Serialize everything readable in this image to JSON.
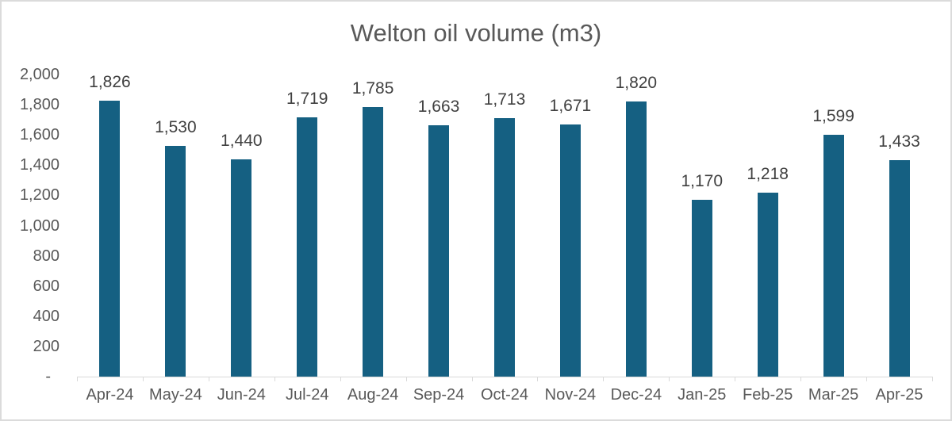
{
  "chart_data": {
    "type": "bar",
    "title": "Welton oil volume (m3)",
    "categories": [
      "Apr-24",
      "May-24",
      "Jun-24",
      "Jul-24",
      "Aug-24",
      "Sep-24",
      "Oct-24",
      "Nov-24",
      "Dec-24",
      "Jan-25",
      "Feb-25",
      "Mar-25",
      "Apr-25"
    ],
    "values": [
      1826,
      1530,
      1440,
      1719,
      1785,
      1663,
      1713,
      1671,
      1820,
      1170,
      1218,
      1599,
      1433
    ],
    "data_labels": [
      "1,826",
      "1,530",
      "1,440",
      "1,719",
      "1,785",
      "1,663",
      "1,713",
      "1,671",
      "1,820",
      "1,170",
      "1,218",
      "1,599",
      "1,433"
    ],
    "xlabel": "",
    "ylabel": "",
    "ylim": [
      0,
      2000
    ],
    "y_tick_step": 200,
    "y_ticks": [
      {
        "value": 2000,
        "label": "2,000"
      },
      {
        "value": 1800,
        "label": "1,800"
      },
      {
        "value": 1600,
        "label": "1,600"
      },
      {
        "value": 1400,
        "label": "1,400"
      },
      {
        "value": 1200,
        "label": "1,200"
      },
      {
        "value": 1000,
        "label": "1,000"
      },
      {
        "value": 800,
        "label": "800"
      },
      {
        "value": 600,
        "label": "600"
      },
      {
        "value": 400,
        "label": "400"
      },
      {
        "value": 200,
        "label": "200"
      },
      {
        "value": 0,
        "label": "-"
      }
    ],
    "grid": false,
    "legend": "none",
    "colors": {
      "bar": "#156082",
      "title": "#595959",
      "axis_label": "#595959",
      "data_label": "#404040",
      "axis_line": "#D9D9D9",
      "frame_border": "#DBDBDB"
    }
  }
}
